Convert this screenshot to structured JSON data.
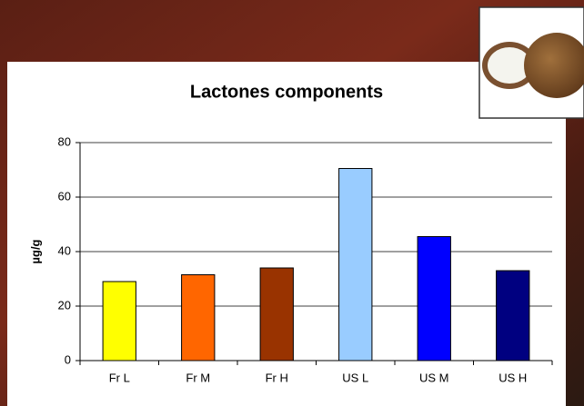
{
  "chart_data": {
    "type": "bar",
    "title": "Lactones components",
    "y_label": "µg/g",
    "categories": [
      "Fr L",
      "Fr M",
      "Fr H",
      "US L",
      "US M",
      "US H"
    ],
    "values": [
      29,
      31.5,
      34,
      70.5,
      45.5,
      33
    ],
    "colors": [
      "#ffff00",
      "#ff6600",
      "#993300",
      "#99ccff",
      "#0000ff",
      "#000080"
    ],
    "ylim": [
      0,
      80
    ],
    "yticks": [
      0,
      20,
      40,
      60,
      80
    ],
    "grid": true
  }
}
